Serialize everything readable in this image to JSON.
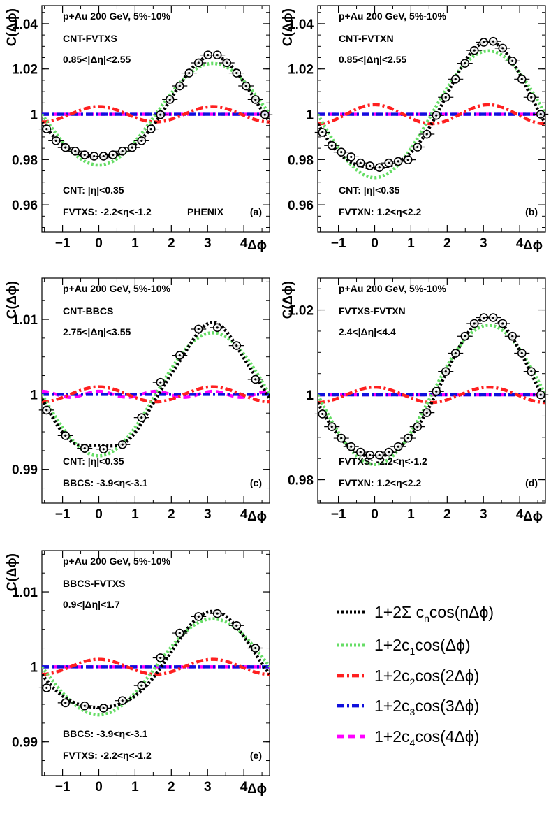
{
  "figure": {
    "experiment": "PHENIX",
    "x_axis_symbol": "Δϕ",
    "y_axis_symbol": "C(Δϕ)"
  },
  "legend": [
    {
      "key": "sum",
      "color": "#000000",
      "dash": "dot",
      "parts": [
        {
          "t": "1+2Σ c"
        },
        {
          "t": "n",
          "sub": true
        },
        {
          "t": "cos(nΔϕ)"
        }
      ]
    },
    {
      "key": "c1",
      "color": "#66dd66",
      "dash": "dot",
      "parts": [
        {
          "t": "1+2c"
        },
        {
          "t": "1",
          "sub": true
        },
        {
          "t": "cos(Δϕ)"
        }
      ]
    },
    {
      "key": "c2",
      "color": "#ff2020",
      "dash": "dashdot",
      "parts": [
        {
          "t": "1+2c"
        },
        {
          "t": "2",
          "sub": true
        },
        {
          "t": "cos(2Δϕ)"
        }
      ]
    },
    {
      "key": "c3",
      "color": "#1010dd",
      "dash": "dashdot",
      "parts": [
        {
          "t": "1+2c"
        },
        {
          "t": "3",
          "sub": true
        },
        {
          "t": "cos(3Δϕ)"
        }
      ]
    },
    {
      "key": "c4",
      "color": "#ff00ff",
      "dash": "dash",
      "parts": [
        {
          "t": "1+2c"
        },
        {
          "t": "4",
          "sub": true
        },
        {
          "t": "cos(4Δϕ)"
        }
      ]
    }
  ],
  "chart_data": [
    {
      "type": "scatter",
      "title": "p+Au 200 GeV, 5%-10%",
      "pair": "CNT-FVTXS",
      "eta_gap": "0.85<|Δη|<2.55",
      "det1": "CNT: |η|<0.35",
      "det2": "FVTXS: -2.2<η<-1.2",
      "experiment": "PHENIX",
      "panel_label": "(a)",
      "xlabel": "Δϕ",
      "ylabel": "C(Δϕ)",
      "xlim": [
        -1.57,
        4.71
      ],
      "ylim": [
        0.948,
        1.048
      ],
      "yticks": [
        0.96,
        0.98,
        1,
        1.02,
        1.04
      ],
      "ytick_labels": [
        "0.96",
        "0.98",
        "1",
        "1.02",
        "1.04"
      ],
      "xticks": [
        -1,
        0,
        1,
        2,
        3,
        4
      ],
      "xtick_labels": [
        "−1",
        "0",
        "1",
        "2",
        "3",
        "4"
      ],
      "fourier": {
        "c1": -0.0112,
        "c2": 0.0017,
        "c3": 0.0,
        "c4": 0.0
      },
      "points": [
        {
          "x": -1.44,
          "y": 0.9935
        },
        {
          "x": -1.18,
          "y": 0.9883
        },
        {
          "x": -0.92,
          "y": 0.9853
        },
        {
          "x": -0.65,
          "y": 0.9837
        },
        {
          "x": -0.39,
          "y": 0.9821
        },
        {
          "x": -0.13,
          "y": 0.9815
        },
        {
          "x": 0.13,
          "y": 0.9815
        },
        {
          "x": 0.39,
          "y": 0.9821
        },
        {
          "x": 0.65,
          "y": 0.9837
        },
        {
          "x": 0.92,
          "y": 0.9853
        },
        {
          "x": 1.18,
          "y": 0.9883
        },
        {
          "x": 1.44,
          "y": 0.9935
        },
        {
          "x": 1.7,
          "y": 0.9998
        },
        {
          "x": 1.96,
          "y": 1.0065
        },
        {
          "x": 2.23,
          "y": 1.0125
        },
        {
          "x": 2.49,
          "y": 1.0182
        },
        {
          "x": 2.75,
          "y": 1.0227
        },
        {
          "x": 3.01,
          "y": 1.0262
        },
        {
          "x": 3.27,
          "y": 1.0262
        },
        {
          "x": 3.53,
          "y": 1.0227
        },
        {
          "x": 3.8,
          "y": 1.0182
        },
        {
          "x": 4.06,
          "y": 1.0125
        },
        {
          "x": 4.32,
          "y": 1.0065
        },
        {
          "x": 4.58,
          "y": 0.9998
        }
      ]
    },
    {
      "type": "scatter",
      "title": "p+Au 200 GeV, 5%-10%",
      "pair": "CNT-FVTXN",
      "eta_gap": "0.85<|Δη|<2.55",
      "det1": "CNT: |η|<0.35",
      "det2": "FVTXN: 1.2<η<2.2",
      "panel_label": "(b)",
      "xlabel": "Δϕ",
      "ylabel": "C(Δϕ)",
      "xlim": [
        -1.57,
        4.71
      ],
      "ylim": [
        0.948,
        1.048
      ],
      "yticks": [
        0.96,
        0.98,
        1,
        1.02,
        1.04
      ],
      "ytick_labels": [
        "0.96",
        "0.98",
        "1",
        "1.02",
        "1.04"
      ],
      "xticks": [
        -1,
        0,
        1,
        2,
        3,
        4
      ],
      "xtick_labels": [
        "−1",
        "0",
        "1",
        "2",
        "3",
        "4"
      ],
      "fourier": {
        "c1": -0.014,
        "c2": 0.0021,
        "c3": 0.0,
        "c4": 0.0
      },
      "points": [
        {
          "x": -1.44,
          "y": 0.992
        },
        {
          "x": -1.18,
          "y": 0.9862
        },
        {
          "x": -0.92,
          "y": 0.9833
        },
        {
          "x": -0.65,
          "y": 0.9812
        },
        {
          "x": -0.39,
          "y": 0.9785
        },
        {
          "x": -0.13,
          "y": 0.9772
        },
        {
          "x": 0.13,
          "y": 0.9765
        },
        {
          "x": 0.39,
          "y": 0.9785
        },
        {
          "x": 0.65,
          "y": 0.9792
        },
        {
          "x": 0.92,
          "y": 0.9799
        },
        {
          "x": 1.18,
          "y": 0.9855
        },
        {
          "x": 1.44,
          "y": 0.9912
        },
        {
          "x": 1.7,
          "y": 0.9995
        },
        {
          "x": 1.96,
          "y": 1.0075
        },
        {
          "x": 2.23,
          "y": 1.0155
        },
        {
          "x": 2.49,
          "y": 1.0225
        },
        {
          "x": 2.75,
          "y": 1.0282
        },
        {
          "x": 3.01,
          "y": 1.0318
        },
        {
          "x": 3.27,
          "y": 1.0322
        },
        {
          "x": 3.53,
          "y": 1.0292
        },
        {
          "x": 3.8,
          "y": 1.0235
        },
        {
          "x": 4.06,
          "y": 1.0155
        },
        {
          "x": 4.32,
          "y": 1.0075
        },
        {
          "x": 4.58,
          "y": 1.0
        }
      ]
    },
    {
      "type": "scatter",
      "title": "p+Au 200 GeV, 5%-10%",
      "pair": "CNT-BBCS",
      "eta_gap": "2.75<|Δη|<3.55",
      "det1": "CNT: |η|<0.35",
      "det2": "BBCS: -3.9<η<-3.1",
      "panel_label": "(c)",
      "xlabel": "Δϕ",
      "ylabel": "C(Δϕ)",
      "xlim": [
        -1.57,
        4.71
      ],
      "ylim": [
        0.9855,
        1.0155
      ],
      "yticks": [
        0.99,
        1,
        1.01
      ],
      "ytick_labels": [
        "0.99",
        "1",
        "1.01"
      ],
      "xticks": [
        -1,
        0,
        1,
        2,
        3,
        4
      ],
      "xtick_labels": [
        "−1",
        "0",
        "1",
        "2",
        "3",
        "4"
      ],
      "fourier": {
        "c1": -0.0041,
        "c2": 0.0005,
        "c3": 0.0,
        "c4": 0.0002
      },
      "points": [
        {
          "x": -1.44,
          "y": 0.9979
        },
        {
          "x": -0.92,
          "y": 0.9945
        },
        {
          "x": -0.39,
          "y": 0.9928
        },
        {
          "x": 0.13,
          "y": 0.9927
        },
        {
          "x": 0.65,
          "y": 0.9933
        },
        {
          "x": 1.18,
          "y": 0.9969
        },
        {
          "x": 1.7,
          "y": 1.0016
        },
        {
          "x": 2.23,
          "y": 1.0052
        },
        {
          "x": 2.75,
          "y": 1.0087
        },
        {
          "x": 3.27,
          "y": 1.0089
        },
        {
          "x": 3.8,
          "y": 1.0065
        },
        {
          "x": 4.32,
          "y": 1.002
        }
      ]
    },
    {
      "type": "scatter",
      "title": "p+Au 200 GeV, 5%-10%",
      "pair": "FVTXS-FVTXN",
      "eta_gap": "2.4<|Δη|<4.4",
      "det1": "FVTXS: -2.2<η<-1.2",
      "det2": "FVTXN: 1.2<η<2.2",
      "panel_label": "(d)",
      "xlabel": "Δϕ",
      "ylabel": "C(Δϕ)",
      "xlim": [
        -1.57,
        4.71
      ],
      "ylim": [
        0.9745,
        1.0275
      ],
      "yticks": [
        0.98,
        1,
        1.02
      ],
      "ytick_labels": [
        "0.98",
        "1",
        "1.02"
      ],
      "xticks": [
        -1,
        0,
        1,
        2,
        3,
        4
      ],
      "xtick_labels": [
        "−1",
        "0",
        "1",
        "2",
        "3",
        "4"
      ],
      "fourier": {
        "c1": -0.0082,
        "c2": 0.0009,
        "c3": 0.0,
        "c4": 0.0
      },
      "points": [
        {
          "x": -1.44,
          "y": 0.9955
        },
        {
          "x": -1.18,
          "y": 0.9925
        },
        {
          "x": -0.92,
          "y": 0.9898
        },
        {
          "x": -0.65,
          "y": 0.9878
        },
        {
          "x": -0.39,
          "y": 0.9865
        },
        {
          "x": -0.13,
          "y": 0.9858
        },
        {
          "x": 0.13,
          "y": 0.9858
        },
        {
          "x": 0.39,
          "y": 0.9865
        },
        {
          "x": 0.65,
          "y": 0.9878
        },
        {
          "x": 0.92,
          "y": 0.9898
        },
        {
          "x": 1.18,
          "y": 0.9925
        },
        {
          "x": 1.44,
          "y": 0.9958
        },
        {
          "x": 1.7,
          "y": 1.0008
        },
        {
          "x": 1.96,
          "y": 1.0055
        },
        {
          "x": 2.23,
          "y": 1.0098
        },
        {
          "x": 2.49,
          "y": 1.0138
        },
        {
          "x": 2.75,
          "y": 1.0168
        },
        {
          "x": 3.01,
          "y": 1.0182
        },
        {
          "x": 3.27,
          "y": 1.0182
        },
        {
          "x": 3.53,
          "y": 1.0168
        },
        {
          "x": 3.8,
          "y": 1.0138
        },
        {
          "x": 4.06,
          "y": 1.0098
        },
        {
          "x": 4.32,
          "y": 1.0055
        },
        {
          "x": 4.58,
          "y": 1.0
        }
      ]
    },
    {
      "type": "scatter",
      "title": "p+Au 200 GeV, 5%-10%",
      "pair": "BBCS-FVTXS",
      "eta_gap": "0.9<|Δη|<1.7",
      "det1": "BBCS: -3.9<η<-3.1",
      "det2": "FVTXS: -2.2<η<-1.2",
      "panel_label": "(e)",
      "xlabel": "Δϕ",
      "ylabel": "C(Δϕ)",
      "xlim": [
        -1.57,
        4.71
      ],
      "ylim": [
        0.9855,
        1.0155
      ],
      "yticks": [
        0.99,
        1,
        1.01
      ],
      "ytick_labels": [
        "0.99",
        "1",
        "1.01"
      ],
      "xticks": [
        -1,
        0,
        1,
        2,
        3,
        4
      ],
      "xtick_labels": [
        "−1",
        "0",
        "1",
        "2",
        "3",
        "4"
      ],
      "fourier": {
        "c1": -0.0032,
        "c2": 0.0005,
        "c3": 0.0,
        "c4": 0.0
      },
      "points": [
        {
          "x": -1.44,
          "y": 0.9972
        },
        {
          "x": -0.92,
          "y": 0.9952
        },
        {
          "x": -0.39,
          "y": 0.9948
        },
        {
          "x": 0.13,
          "y": 0.9945
        },
        {
          "x": 0.65,
          "y": 0.9955
        },
        {
          "x": 1.18,
          "y": 0.9975
        },
        {
          "x": 1.7,
          "y": 1.0012
        },
        {
          "x": 2.23,
          "y": 1.0045
        },
        {
          "x": 2.75,
          "y": 1.0067
        },
        {
          "x": 3.27,
          "y": 1.0071
        },
        {
          "x": 3.8,
          "y": 1.0055
        },
        {
          "x": 4.32,
          "y": 1.0025
        }
      ]
    }
  ]
}
